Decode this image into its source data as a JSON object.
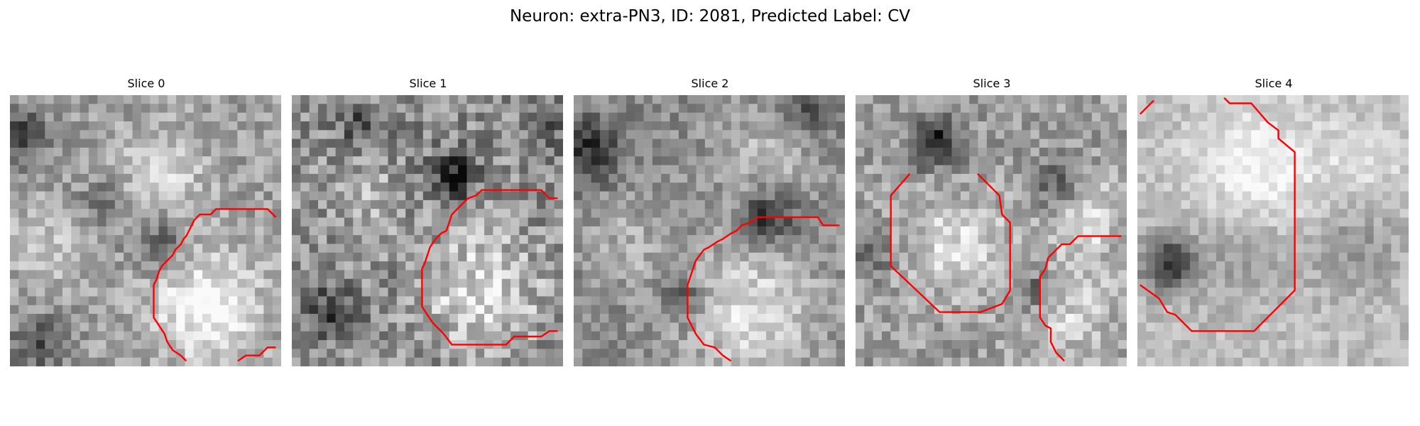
{
  "figure": {
    "title": "Neuron: extra-PN3, ID: 2081, Predicted Label: CV"
  },
  "panels": [
    {
      "label": "Slice 0"
    },
    {
      "label": "Slice 1"
    },
    {
      "label": "Slice 2"
    },
    {
      "label": "Slice 3"
    },
    {
      "label": "Slice 4"
    }
  ],
  "colors": {
    "contour": "#ff0000",
    "colormap": "grayscale"
  }
}
